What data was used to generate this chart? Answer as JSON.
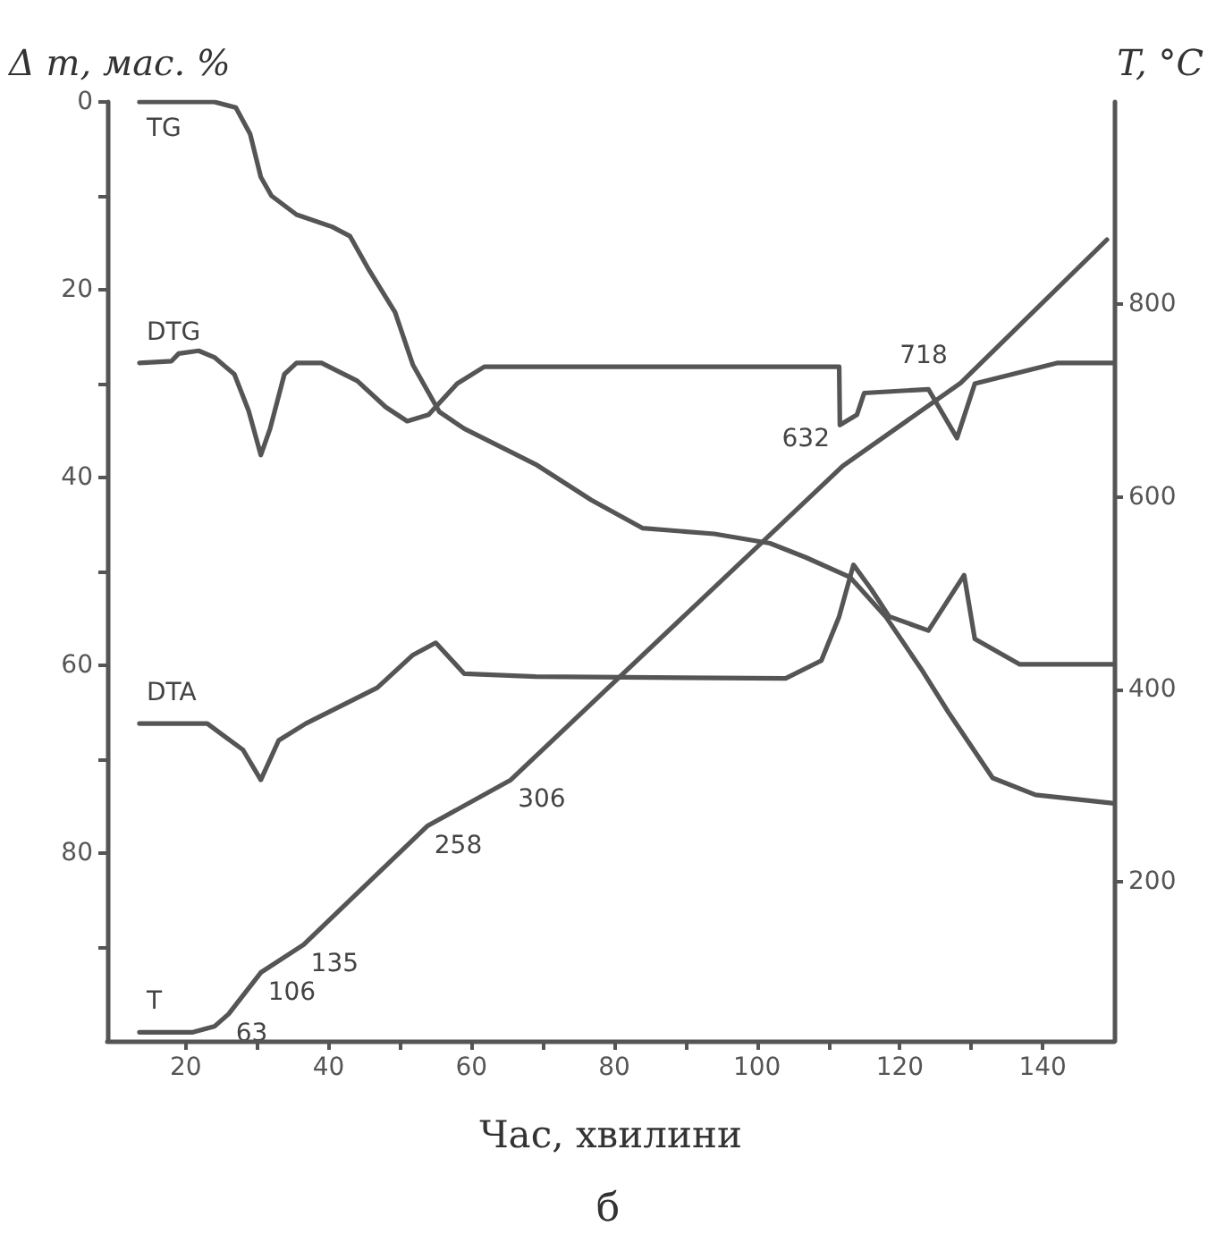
{
  "chart_data": {
    "type": "line",
    "xlabel": "Час, хвилини",
    "ylabel": "Δ m, мас. %",
    "y2label": "T, °C",
    "xlim": [
      9,
      150
    ],
    "xticks": [
      20,
      {
        "value": 30,
        "label": null
      },
      40,
      {
        "value": 50,
        "label": null
      },
      60,
      {
        "value": 70,
        "label": null
      },
      80,
      {
        "value": 90,
        "label": null
      },
      100,
      {
        "value": 110,
        "label": null
      },
      120,
      {
        "value": 130,
        "label": null
      },
      140
    ],
    "ylim": [
      100,
      0
    ],
    "yticks": [
      0,
      {
        "value": 10,
        "label": null
      },
      20,
      {
        "value": 30,
        "label": null
      },
      40,
      {
        "value": 50,
        "label": null
      },
      60,
      {
        "value": 70,
        "label": null
      },
      80,
      {
        "value": 90,
        "label": null
      }
    ],
    "y2lim": [
      35,
      1010
    ],
    "y2ticks": [
      200,
      400,
      600,
      800
    ],
    "grid": false,
    "legend": false,
    "marker": "none",
    "line_style": "solid",
    "series": [
      {
        "name": "TG",
        "color": "#555555",
        "x": [
          13.5,
          24,
          27,
          29,
          30.5,
          32,
          35.5,
          40.5,
          43,
          45.5,
          49.3,
          51.8,
          55.5,
          59,
          69,
          76.8,
          84,
          94,
          101.8,
          106.8,
          113,
          118,
          123,
          126.8,
          133,
          139,
          150
        ],
        "values": [
          0,
          0,
          0.6,
          3.4,
          8,
          10,
          12,
          13.3,
          14.3,
          17.7,
          22.4,
          28,
          33,
          34.8,
          38.6,
          42.4,
          45.4,
          46,
          47,
          48.5,
          50.6,
          54.8,
          60.4,
          65,
          72,
          73.8,
          74.7
        ]
      },
      {
        "name": "DTG",
        "color": "#555555",
        "x": [
          13.5,
          18,
          19,
          21.8,
          24,
          26.8,
          28.8,
          30.5,
          31.8,
          33.8,
          35.5,
          39,
          44,
          48,
          51,
          54,
          58,
          61.8,
          64,
          111.5,
          111.6,
          114,
          115,
          124,
          128,
          130.5,
          142,
          150
        ],
        "values": [
          27.8,
          27.6,
          26.8,
          26.5,
          27.2,
          29,
          32.9,
          37.6,
          34.8,
          29,
          27.8,
          27.8,
          29.7,
          32.5,
          34,
          33.3,
          30,
          28.2,
          28.2,
          28.2,
          34.4,
          33.3,
          31,
          30.6,
          35.8,
          30,
          27.8,
          27.8
        ]
      },
      {
        "name": "DTA",
        "color": "#555555",
        "x": [
          13.5,
          23,
          28,
          30.5,
          33,
          36.8,
          46.8,
          51.8,
          55,
          59,
          69,
          104,
          109,
          111.5,
          113.5,
          116,
          118.5,
          124,
          129,
          130.5,
          136.8,
          150
        ],
        "values": [
          66.2,
          66.2,
          69,
          72.2,
          68,
          66.2,
          62.4,
          58.9,
          57.6,
          60.9,
          61.2,
          61.4,
          59.5,
          54.8,
          49.3,
          51.9,
          54.8,
          56.3,
          50.4,
          57.2,
          59.9,
          59.9
        ]
      },
      {
        "name": "T",
        "color": "#555555",
        "axis": "y2",
        "x": [
          13.5,
          21,
          24,
          26,
          30.5,
          36.5,
          53.8,
          65.5,
          112,
          128.5,
          149
        ],
        "values": [
          44,
          44,
          50,
          63,
          106,
          135,
          258,
          306,
          632,
          718,
          867
        ],
        "value_labels": [
          null,
          null,
          null,
          "63",
          "106",
          "135",
          "258",
          "306",
          "632",
          "718",
          null
        ]
      }
    ],
    "annotations": [
      "б"
    ]
  }
}
